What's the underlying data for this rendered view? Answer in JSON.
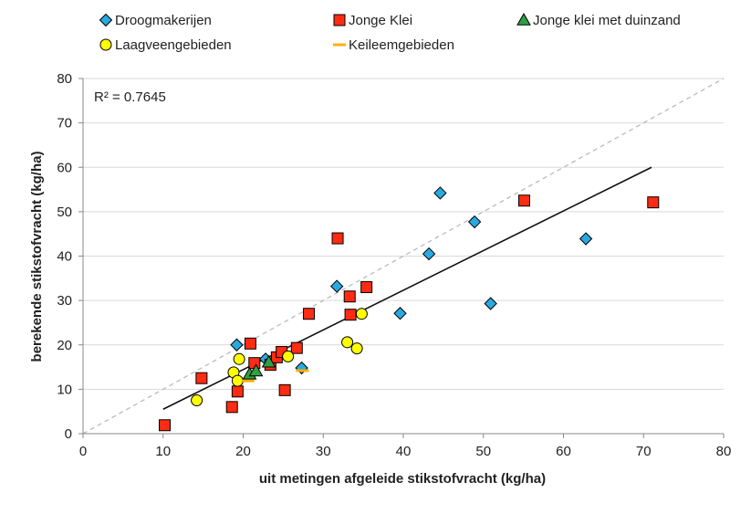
{
  "chart_data": {
    "type": "scatter",
    "xlabel": "uit metingen afgeleide stikstofvracht (kg/ha)",
    "ylabel": "berekende stikstofvracht (kg/ha)",
    "xlim": [
      0,
      80
    ],
    "ylim": [
      0,
      80
    ],
    "x_ticks": [
      "0",
      "10",
      "20",
      "30",
      "40",
      "50",
      "60",
      "70",
      "80"
    ],
    "y_ticks": [
      "0",
      "10",
      "20",
      "30",
      "40",
      "50",
      "60",
      "70",
      "80"
    ],
    "grid": true,
    "legend_position": "top",
    "annotation": "R² = 0.7645",
    "reference_line": {
      "style": "dashed",
      "color": "#bbbbbb",
      "points": [
        [
          0,
          0
        ],
        [
          80,
          80
        ]
      ]
    },
    "trend_line": {
      "color": "#111111",
      "points": [
        [
          10,
          5.5
        ],
        [
          71,
          60
        ]
      ]
    },
    "series": [
      {
        "name": "Droogmakerijen",
        "marker": "diamond",
        "color": "#29a9e0",
        "points": [
          [
            19.2,
            20
          ],
          [
            22.8,
            16.8
          ],
          [
            27.3,
            14.8
          ],
          [
            31.7,
            33.2
          ],
          [
            39.6,
            27.1
          ],
          [
            43.2,
            40.5
          ],
          [
            44.6,
            54.2
          ],
          [
            48.9,
            47.7
          ],
          [
            50.9,
            29.3
          ],
          [
            62.8,
            43.9
          ]
        ]
      },
      {
        "name": "Jonge Klei",
        "marker": "square",
        "color": "#ff2b12",
        "points": [
          [
            10.2,
            1.9
          ],
          [
            14.8,
            12.5
          ],
          [
            18.6,
            6
          ],
          [
            19.3,
            9.5
          ],
          [
            20.9,
            20.3
          ],
          [
            21.4,
            15.9
          ],
          [
            23.4,
            15.5
          ],
          [
            24.2,
            17.2
          ],
          [
            24.8,
            18.4
          ],
          [
            25.2,
            9.8
          ],
          [
            26.7,
            19.3
          ],
          [
            28.2,
            27
          ],
          [
            31.8,
            44
          ],
          [
            33.3,
            30.9
          ],
          [
            33.4,
            26.8
          ],
          [
            35.4,
            33
          ],
          [
            55.1,
            52.5
          ],
          [
            71.2,
            52.1
          ]
        ]
      },
      {
        "name": "Jonge klei met duinzand",
        "marker": "triangle",
        "color": "#2ea043",
        "points": [
          [
            20.8,
            13.4
          ],
          [
            21.6,
            14.1
          ],
          [
            23.2,
            16.1
          ]
        ]
      },
      {
        "name": "Laagveengebieden",
        "marker": "circle",
        "color": "#ffff00",
        "points": [
          [
            14.2,
            7.5
          ],
          [
            18.8,
            13.8
          ],
          [
            19.3,
            11.9
          ],
          [
            19.5,
            16.8
          ],
          [
            25.6,
            17.4
          ],
          [
            33,
            20.6
          ],
          [
            34.2,
            19.2
          ],
          [
            34.8,
            27
          ]
        ]
      },
      {
        "name": "Keileemgebieden",
        "marker": "dash",
        "color": "#ffb000",
        "points": [
          [
            20.6,
            11.9
          ],
          [
            27.4,
            14.2
          ]
        ]
      }
    ]
  }
}
